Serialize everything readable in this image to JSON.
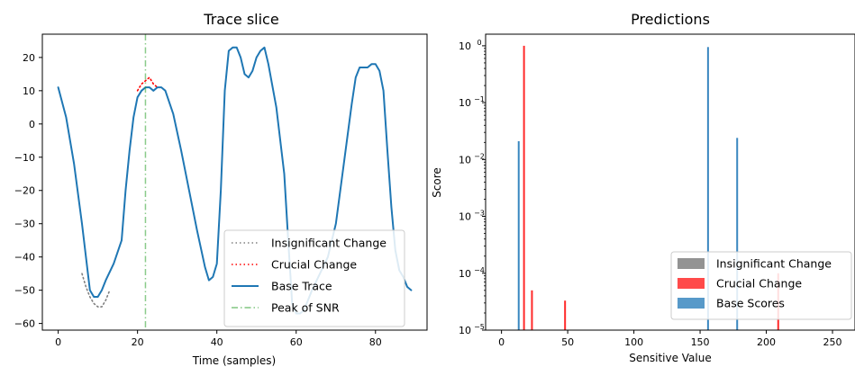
{
  "chart_data": [
    {
      "type": "line",
      "title": "Trace slice",
      "xlabel": "Time (samples)",
      "ylabel": "",
      "xlim": [
        -4,
        93
      ],
      "ylim": [
        -62,
        27
      ],
      "x_ticks": [
        0,
        20,
        40,
        60,
        80
      ],
      "x_tick_labels": [
        "0",
        "20",
        "40",
        "60",
        "80"
      ],
      "y_ticks": [
        20,
        10,
        0,
        -10,
        -20,
        -30,
        -40,
        -50,
        -60
      ],
      "y_tick_labels": [
        "20",
        "10",
        "0",
        "−10",
        "−20",
        "−30",
        "−40",
        "−50",
        "−60"
      ],
      "legend_position": "lower-right",
      "series": [
        {
          "name": "Insignificant Change",
          "style": "dotted",
          "color": "#808080",
          "points": [
            [
              6,
              -45
            ],
            [
              7,
              -49
            ],
            [
              8,
              -52
            ],
            [
              9,
              -54
            ],
            [
              10,
              -55
            ],
            [
              11,
              -55
            ],
            [
              12,
              -53
            ],
            [
              13,
              -50
            ]
          ]
        },
        {
          "name": "Crucial Change",
          "style": "dotted",
          "color": "#ff0000",
          "points": [
            [
              20,
              10
            ],
            [
              21,
              12
            ],
            [
              22,
              13
            ],
            [
              23,
              14
            ],
            [
              24,
              12
            ],
            [
              25,
              11
            ]
          ]
        },
        {
          "name": "Base Trace",
          "style": "solid",
          "color": "#1f77b4",
          "points": [
            [
              0,
              11
            ],
            [
              2,
              2
            ],
            [
              4,
              -12
            ],
            [
              6,
              -30
            ],
            [
              7,
              -40
            ],
            [
              8,
              -50
            ],
            [
              9,
              -52
            ],
            [
              10,
              -52
            ],
            [
              11,
              -50
            ],
            [
              12,
              -47
            ],
            [
              14,
              -42
            ],
            [
              16,
              -35
            ],
            [
              17,
              -20
            ],
            [
              18,
              -8
            ],
            [
              19,
              2
            ],
            [
              20,
              8
            ],
            [
              21,
              10
            ],
            [
              22,
              11
            ],
            [
              23,
              11
            ],
            [
              24,
              10
            ],
            [
              25,
              11
            ],
            [
              26,
              11
            ],
            [
              27,
              10
            ],
            [
              29,
              3
            ],
            [
              31,
              -8
            ],
            [
              33,
              -20
            ],
            [
              35,
              -32
            ],
            [
              37,
              -43
            ],
            [
              38,
              -47
            ],
            [
              39,
              -46
            ],
            [
              40,
              -42
            ],
            [
              41,
              -20
            ],
            [
              42,
              10
            ],
            [
              43,
              22
            ],
            [
              44,
              23
            ],
            [
              45,
              23
            ],
            [
              46,
              20
            ],
            [
              47,
              15
            ],
            [
              48,
              14
            ],
            [
              49,
              16
            ],
            [
              50,
              20
            ],
            [
              51,
              22
            ],
            [
              52,
              23
            ],
            [
              53,
              18
            ],
            [
              55,
              5
            ],
            [
              57,
              -15
            ],
            [
              58,
              -35
            ],
            [
              59,
              -54
            ],
            [
              60,
              -57
            ],
            [
              61,
              -57
            ],
            [
              62,
              -56
            ],
            [
              64,
              -50
            ],
            [
              66,
              -45
            ],
            [
              68,
              -40
            ],
            [
              70,
              -30
            ],
            [
              72,
              -12
            ],
            [
              74,
              6
            ],
            [
              75,
              14
            ],
            [
              76,
              17
            ],
            [
              78,
              17
            ],
            [
              79,
              18
            ],
            [
              80,
              18
            ],
            [
              81,
              16
            ],
            [
              82,
              10
            ],
            [
              83,
              -8
            ],
            [
              84,
              -25
            ],
            [
              85,
              -38
            ],
            [
              86,
              -44
            ],
            [
              87,
              -46
            ],
            [
              88,
              -49
            ],
            [
              89,
              -50
            ]
          ]
        },
        {
          "name": "Peak of SNR",
          "style": "dashdot",
          "color": "#2ca02c",
          "vertical_x": 22
        }
      ]
    },
    {
      "type": "bar",
      "title": "Predictions",
      "xlabel": "Sensitive Value",
      "ylabel": "Score",
      "yscale": "log",
      "xlim": [
        -12,
        267
      ],
      "ylim": [
        1e-05,
        1.6
      ],
      "x_ticks": [
        0,
        50,
        100,
        150,
        200,
        250
      ],
      "x_tick_labels": [
        "0",
        "50",
        "100",
        "150",
        "200",
        "250"
      ],
      "y_ticks": [
        1,
        0.1,
        0.01,
        0.001,
        0.0001,
        1e-05
      ],
      "y_tick_labels": [
        "10^0",
        "10^-1",
        "10^-2",
        "10^-3",
        "10^-4",
        "10^-5"
      ],
      "legend_position": "lower-right",
      "series": [
        {
          "name": "Insignificant Change",
          "color": "#808080",
          "bars": []
        },
        {
          "name": "Crucial Change",
          "color": "#ff2a2a",
          "bars": [
            [
              17,
              1.0
            ],
            [
              23,
              5e-05
            ],
            [
              48,
              3.3e-05
            ],
            [
              209,
              0.0001
            ]
          ]
        },
        {
          "name": "Base Scores",
          "color": "#3a87c0",
          "bars": [
            [
              13,
              0.021
            ],
            [
              156,
              0.95
            ],
            [
              178,
              0.024
            ]
          ]
        }
      ]
    }
  ]
}
